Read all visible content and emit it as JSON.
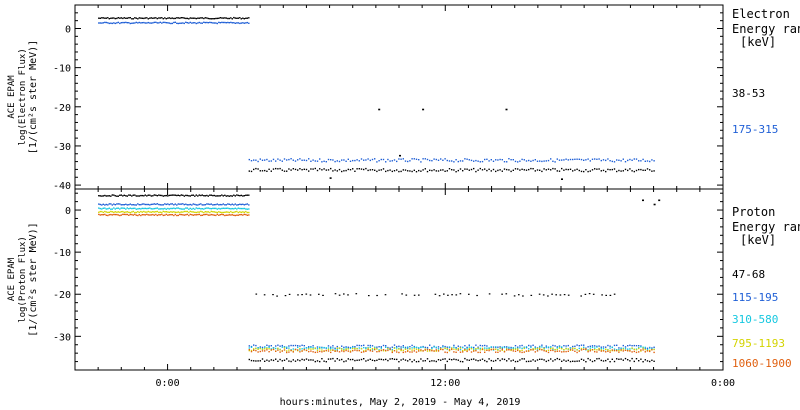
{
  "xlabel": "hours:minutes, May  2, 2019 - May  4, 2019",
  "x_tick_labels": [
    "0:00",
    "12:00",
    "0:00"
  ],
  "chart_data": [
    {
      "type": "scatter",
      "ylabel": [
        "ACE EPAM",
        "log(Electron Flux)",
        "[1/(cm²s ster MeV)]"
      ],
      "ylim": [
        -41,
        6
      ],
      "yticks": [
        0,
        -10,
        -20,
        -30,
        -40
      ],
      "xlim": [
        0,
        28
      ],
      "legend_title": [
        "Electron",
        "Energy ran",
        "[keV]"
      ],
      "series": [
        {
          "name": "38-53",
          "color": "#000000",
          "segments": [
            [
              1.0,
              7.5,
              2.8
            ],
            [
              7.5,
              25.0,
              -36.0
            ]
          ]
        },
        {
          "name": "175-315",
          "color": "#1f5fd6",
          "segments": [
            [
              1.0,
              7.5,
              1.6
            ],
            [
              7.5,
              25.0,
              -33.5
            ]
          ]
        }
      ],
      "outliers": [
        [
          13.1,
          -20.5
        ],
        [
          15.0,
          -20.5
        ],
        [
          18.6,
          -20.5
        ],
        [
          14.0,
          -32.3
        ],
        [
          11.0,
          -38.0
        ],
        [
          21.0,
          -38.3
        ]
      ]
    },
    {
      "type": "scatter",
      "ylabel": [
        "ACE EPAM",
        "log(Proton Flux)",
        "[1/(cm²s ster MeV)]"
      ],
      "ylim": [
        -38,
        5
      ],
      "yticks": [
        0,
        -10,
        -20,
        -30
      ],
      "xlim": [
        0,
        28
      ],
      "legend_title": [
        "Proton",
        "Energy ran",
        "[keV]"
      ],
      "series": [
        {
          "name": "47-68",
          "color": "#000000",
          "segments": [
            [
              1.0,
              7.5,
              3.6
            ],
            [
              7.5,
              25.0,
              -35.5
            ]
          ]
        },
        {
          "name": "115-195",
          "color": "#1f5fd6",
          "segments": [
            [
              1.0,
              7.5,
              1.5
            ],
            [
              7.5,
              25.0,
              -32.3
            ]
          ]
        },
        {
          "name": "310-580",
          "color": "#16c8e0",
          "segments": [
            [
              1.0,
              7.5,
              0.5
            ],
            [
              7.5,
              25.0,
              -32.7
            ]
          ]
        },
        {
          "name": "795-1193",
          "color": "#d4d400",
          "segments": [
            [
              1.0,
              7.5,
              -0.3
            ],
            [
              7.5,
              25.0,
              -33.0
            ]
          ]
        },
        {
          "name": "1060-1900",
          "color": "#e06010",
          "segments": [
            [
              1.0,
              7.5,
              -1.0
            ],
            [
              7.5,
              25.0,
              -33.3
            ]
          ]
        }
      ],
      "scatter_band": {
        "y": -20,
        "x_start": 7.8,
        "x_end": 23.5
      },
      "outliers": [
        [
          24.5,
          2.5
        ],
        [
          25.2,
          2.5
        ],
        [
          25.0,
          1.5
        ]
      ]
    }
  ]
}
